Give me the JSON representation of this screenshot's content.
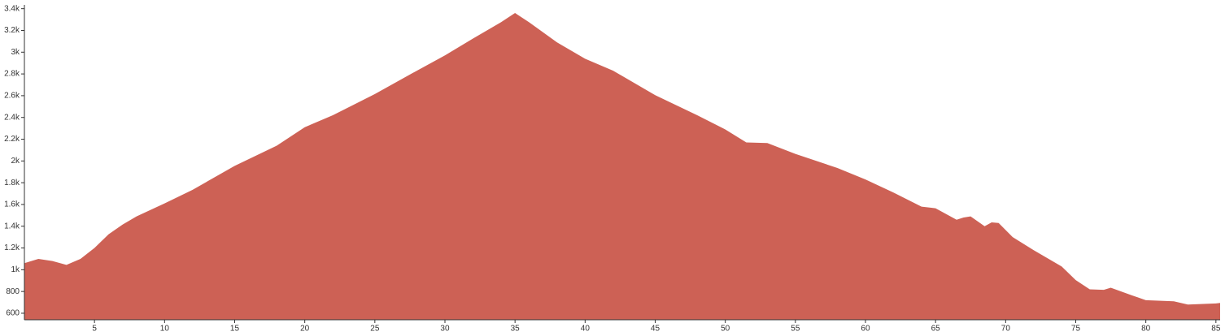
{
  "chart_data": {
    "type": "area",
    "color": "#cd6155",
    "x": [
      0,
      1,
      2,
      3,
      4,
      5,
      6,
      7,
      8,
      10,
      12,
      15,
      18,
      20,
      22,
      25,
      28,
      30,
      32,
      34,
      35,
      36,
      38,
      40,
      42,
      45,
      48,
      50,
      51.5,
      53,
      55,
      58,
      60,
      62,
      64,
      65,
      66.5,
      67,
      67.5,
      68.5,
      69,
      69.5,
      70.5,
      72,
      74,
      75,
      76,
      77,
      77.5,
      79,
      80,
      82,
      83,
      85,
      85.3
    ],
    "values": [
      1060,
      1100,
      1080,
      1045,
      1100,
      1200,
      1325,
      1415,
      1490,
      1610,
      1735,
      1955,
      2140,
      2310,
      2420,
      2615,
      2830,
      2970,
      3125,
      3275,
      3360,
      3275,
      3090,
      2940,
      2830,
      2605,
      2420,
      2290,
      2170,
      2165,
      2065,
      1935,
      1830,
      1710,
      1580,
      1565,
      1460,
      1480,
      1490,
      1400,
      1435,
      1430,
      1300,
      1180,
      1030,
      905,
      820,
      815,
      835,
      765,
      720,
      710,
      680,
      690,
      695
    ],
    "xlim": [
      0,
      85.3
    ],
    "ylim": [
      540,
      3420
    ],
    "xticks": [
      5,
      10,
      15,
      20,
      25,
      30,
      35,
      40,
      45,
      50,
      55,
      60,
      65,
      70,
      75,
      80,
      85
    ],
    "yticks": [
      600,
      800,
      {
        "value": 1000,
        "label": "1k"
      },
      {
        "value": 1200,
        "label": "1.2k"
      },
      {
        "value": 1400,
        "label": "1.4k"
      },
      {
        "value": 1600,
        "label": "1.6k"
      },
      {
        "value": 1800,
        "label": "1.8k"
      },
      {
        "value": 2000,
        "label": "2k"
      },
      {
        "value": 2200,
        "label": "2.2k"
      },
      {
        "value": 2400,
        "label": "2.4k"
      },
      {
        "value": 2600,
        "label": "2.6k"
      },
      {
        "value": 2800,
        "label": "2.8k"
      },
      {
        "value": 3000,
        "label": "3k"
      },
      {
        "value": 3200,
        "label": "3.2k"
      },
      {
        "value": 3400,
        "label": "3.4k"
      }
    ]
  }
}
